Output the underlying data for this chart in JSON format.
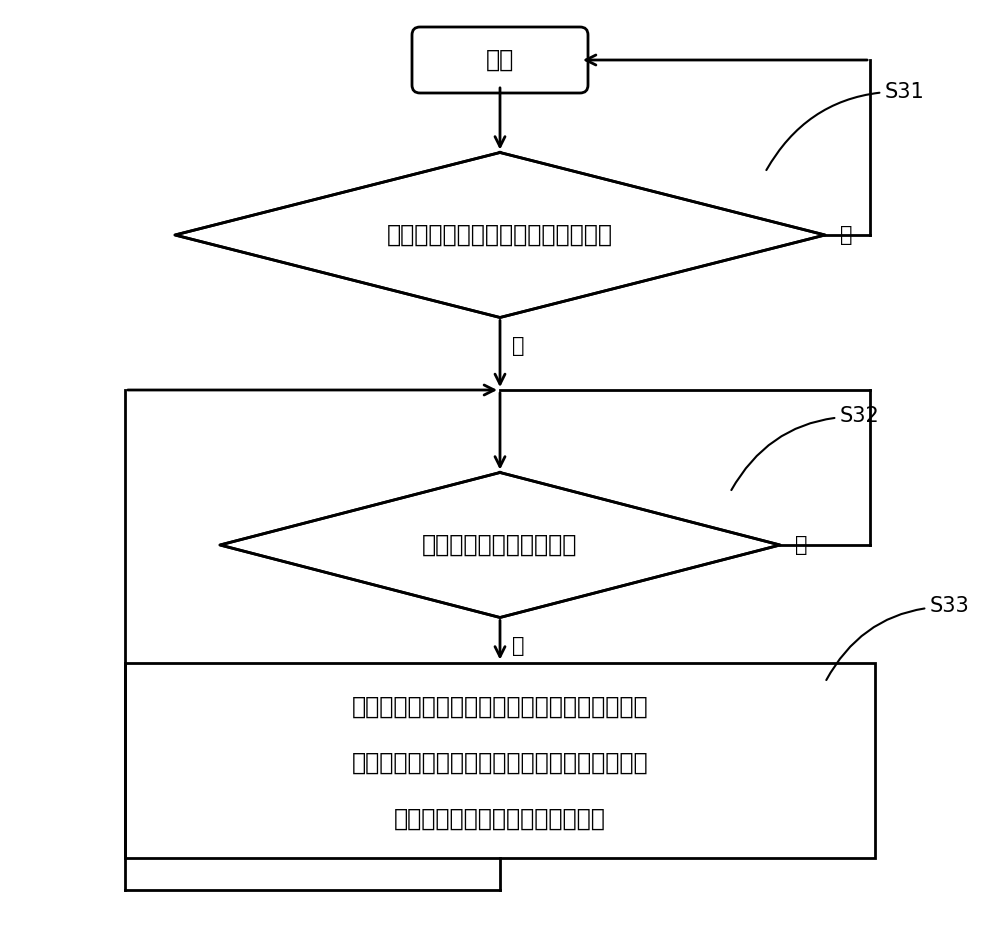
{
  "bg_color": "#ffffff",
  "line_color": "#000000",
  "text_color": "#000000",
  "start_label": "开始",
  "diamond1_label": "判断所述制冷设备是否处于待机状态",
  "diamond2_label": "判断是否接收到加热信号",
  "rect_line1": "控制所述供电模块依次给所述压缩机的绕组单元",
  "rect_line2": "中的两相绕组供电，并调整当前供电的两相绕组",
  "rect_line3": "中的电流，以使所述绕组单元发热",
  "s31_label": "S31",
  "s32_label": "S32",
  "s33_label": "S33",
  "yes_label": "是",
  "no_label": "否",
  "font_size_main": 17,
  "font_size_label": 15,
  "font_size_step": 15
}
